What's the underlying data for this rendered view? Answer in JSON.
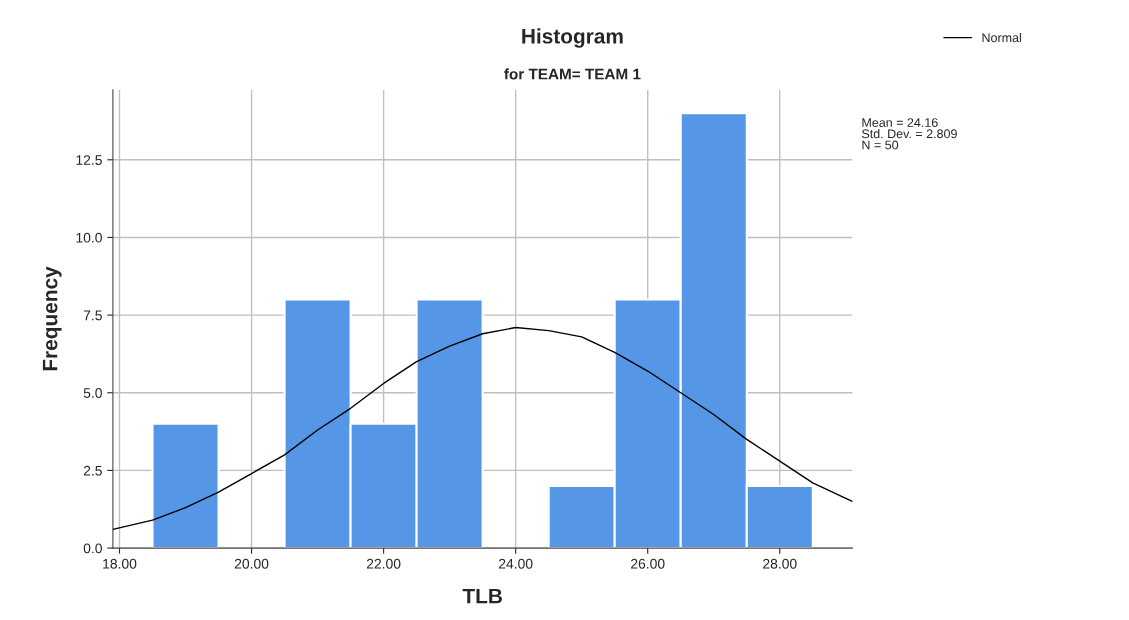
{
  "chart_data": {
    "type": "histogram",
    "title": "Histogram",
    "subtitle": "for TEAM= TEAM 1",
    "xlabel": "TLB",
    "ylabel": "Frequency",
    "series": [
      {
        "color": "#5596e6",
        "bins": [
          18.5,
          19.5,
          20.5,
          21.5,
          22.5,
          23.5,
          24.5,
          25.5,
          26.5,
          27.5,
          28.5
        ],
        "values": [
          4,
          0,
          8,
          4,
          8,
          0,
          2,
          8,
          14,
          2
        ]
      },
      {
        "type": "line",
        "name": "Normal",
        "color": "#000000",
        "x": [
          17.9,
          18.5,
          19,
          19.5,
          20,
          20.5,
          21,
          21.5,
          22,
          22.5,
          23,
          23.5,
          24,
          24.5,
          25,
          25.5,
          26,
          26.5,
          27,
          27.5,
          28,
          28.5,
          29,
          29.1
        ],
        "values": [
          0.6,
          0.9,
          1.3,
          1.8,
          2.4,
          3.0,
          3.8,
          4.5,
          5.3,
          6.0,
          6.5,
          6.9,
          7.1,
          7.0,
          6.8,
          6.3,
          5.7,
          5.0,
          4.3,
          3.5,
          2.8,
          2.1,
          1.6,
          1.5
        ]
      }
    ],
    "xlim": [
      17.9,
      29.1
    ],
    "xticks": [
      {
        "value": 18,
        "label": "18.00"
      },
      {
        "value": 20,
        "label": "20.00"
      },
      {
        "value": 22,
        "label": "22.00"
      },
      {
        "value": 24,
        "label": "24.00"
      },
      {
        "value": 26,
        "label": "26.00"
      },
      {
        "value": 28,
        "label": "28.00"
      }
    ],
    "ylim": [
      0,
      14.75
    ],
    "yticks": [
      {
        "value": 0,
        "label": "0.0"
      },
      {
        "value": 2.5,
        "label": "2.5"
      },
      {
        "value": 5,
        "label": "5.0"
      },
      {
        "value": 7.5,
        "label": "7.5"
      },
      {
        "value": 10,
        "label": "10.0"
      },
      {
        "value": 12.5,
        "label": "12.5"
      }
    ],
    "annotations": [
      "Mean = 24.16\nStd. Dev. = 2.809\nN = 50"
    ],
    "grid": true,
    "legend": "top right",
    "line_style": "solid",
    "marker": "none"
  }
}
